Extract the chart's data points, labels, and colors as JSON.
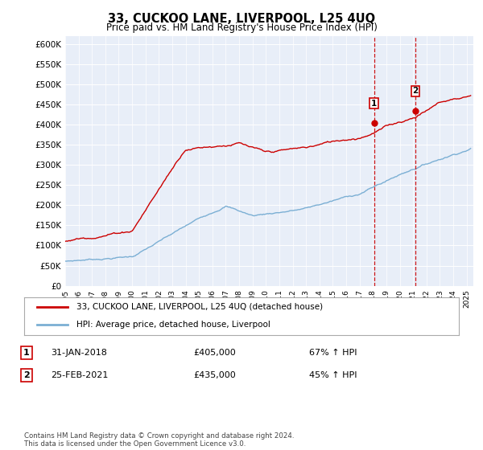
{
  "title": "33, CUCKOO LANE, LIVERPOOL, L25 4UQ",
  "subtitle": "Price paid vs. HM Land Registry's House Price Index (HPI)",
  "footer": "Contains HM Land Registry data © Crown copyright and database right 2024.\nThis data is licensed under the Open Government Licence v3.0.",
  "legend_line1": "33, CUCKOO LANE, LIVERPOOL, L25 4UQ (detached house)",
  "legend_line2": "HPI: Average price, detached house, Liverpool",
  "annotation1_label": "1",
  "annotation1_date": "31-JAN-2018",
  "annotation1_price": "£405,000",
  "annotation1_hpi": "67% ↑ HPI",
  "annotation2_label": "2",
  "annotation2_date": "25-FEB-2021",
  "annotation2_price": "£435,000",
  "annotation2_hpi": "45% ↑ HPI",
  "hpi_color": "#7bafd4",
  "price_color": "#cc0000",
  "vline_color": "#cc0000",
  "background_color": "#e8eef8",
  "ylim": [
    0,
    620000
  ],
  "yticks": [
    0,
    50000,
    100000,
    150000,
    200000,
    250000,
    300000,
    350000,
    400000,
    450000,
    500000,
    550000,
    600000
  ],
  "ytick_labels": [
    "£0",
    "£50K",
    "£100K",
    "£150K",
    "£200K",
    "£250K",
    "£300K",
    "£350K",
    "£400K",
    "£450K",
    "£500K",
    "£550K",
    "£600K"
  ],
  "sale1_x": 2018.08,
  "sale1_y": 405000,
  "sale2_x": 2021.15,
  "sale2_y": 435000,
  "xmin": 1995,
  "xmax": 2025.5
}
